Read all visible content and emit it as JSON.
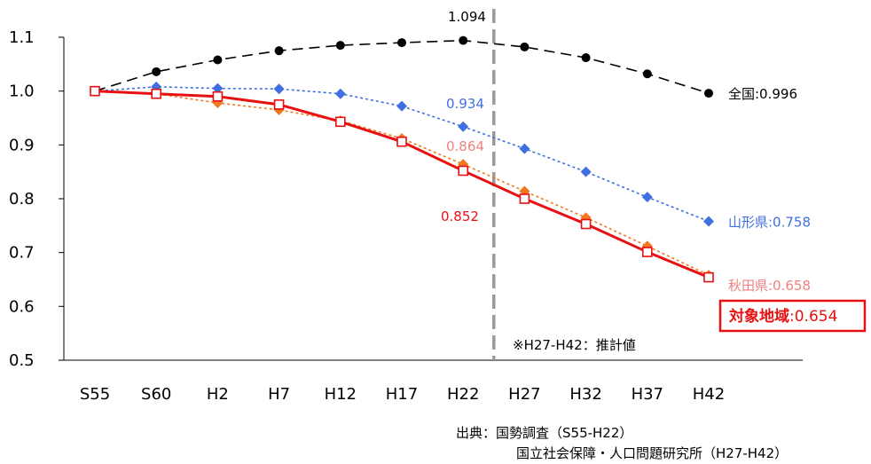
{
  "chart_data": {
    "type": "line",
    "categories": [
      "S55",
      "S60",
      "H2",
      "H7",
      "H12",
      "H17",
      "H22",
      "H27",
      "H32",
      "H37",
      "H42"
    ],
    "ylim": [
      0.5,
      1.1
    ],
    "yticks": [
      "0.5",
      "0.6",
      "0.7",
      "0.8",
      "0.9",
      "1.0",
      "1.1"
    ],
    "projection_note": "※H27-H42：推計値",
    "series": [
      {
        "name": "全国",
        "end_label": "全国:0.996",
        "color": "#000000",
        "marker": "circle",
        "dash": "dashed",
        "values": [
          1.0,
          1.036,
          1.058,
          1.075,
          1.085,
          1.09,
          1.094,
          1.082,
          1.062,
          1.032,
          0.996
        ]
      },
      {
        "name": "山形県",
        "end_label": "山形県:0.758",
        "color": "#3f6fe0",
        "marker": "diamond",
        "dash": "dotted",
        "values": [
          1.0,
          1.008,
          1.005,
          1.004,
          0.995,
          0.972,
          0.934,
          0.893,
          0.85,
          0.803,
          0.758
        ]
      },
      {
        "name": "秋田県",
        "end_label": "秋田県:0.658",
        "color": "#f07820",
        "label_color": "#f08080",
        "marker": "diamond",
        "dash": "dotted",
        "values": [
          1.0,
          0.995,
          0.978,
          0.965,
          0.945,
          0.912,
          0.864,
          0.814,
          0.765,
          0.712,
          0.658
        ]
      },
      {
        "name": "対象地域",
        "end_label_bold": "対象地域",
        "end_label_value": ":0.654",
        "color": "#e81010",
        "marker": "square-open",
        "dash": "solid",
        "values": [
          1.0,
          0.995,
          0.99,
          0.975,
          0.943,
          0.906,
          0.852,
          0.8,
          0.753,
          0.701,
          0.654
        ]
      }
    ],
    "annotations": [
      {
        "text": "1.094",
        "color": "#000000"
      },
      {
        "text": "0.934",
        "color": "#3f6fe0"
      },
      {
        "text": "0.864",
        "color": "#f08080"
      },
      {
        "text": "0.852",
        "color": "#e81010"
      }
    ],
    "source_lines": [
      "出典：国勢調査（S55-H22）",
      "国立社会保障・人口問題研究所（H27-H42）"
    ]
  }
}
